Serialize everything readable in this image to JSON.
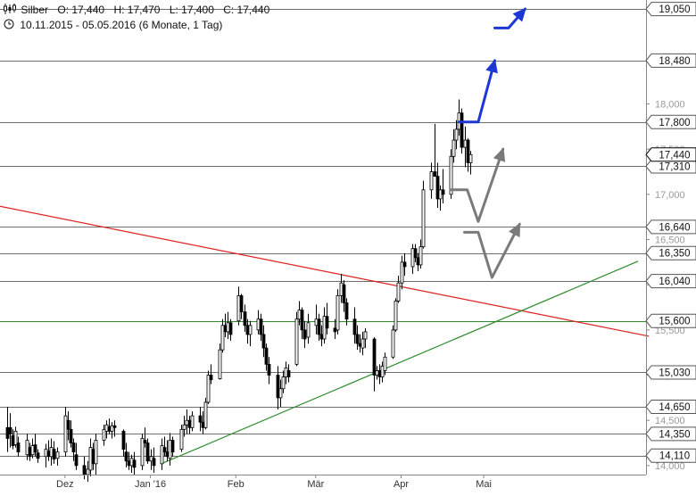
{
  "header": {
    "symbol": "Silber",
    "open": "O: 17,440",
    "high": "H: 17,470",
    "low": "L: 17,400",
    "close": "C: 17,440",
    "period": "10.11.2015 - 05.05.2016 (6 Monate, 1 Tag)"
  },
  "chart_data": {
    "type": "candlestick",
    "ylim": [
      13.9,
      19.15
    ],
    "x_axis": {
      "labels": [
        {
          "label": "Dez",
          "day": 21
        },
        {
          "label": "Jan '16",
          "day": 52
        },
        {
          "label": "Feb",
          "day": 83
        },
        {
          "label": "Mär",
          "day": 112
        },
        {
          "label": "Apr",
          "day": 143
        },
        {
          "label": "Mai",
          "day": 173
        }
      ],
      "range_days": [
        0,
        183
      ]
    },
    "y_ticks": [
      "14,000",
      "14,500",
      "15,000",
      "15,500",
      "16,000",
      "16,500",
      "17,000",
      "17,500",
      "18,000"
    ],
    "levels": [
      {
        "value": 19.05,
        "label": "19,050"
      },
      {
        "value": 18.48,
        "label": "18,480"
      },
      {
        "value": 17.8,
        "label": "17,800"
      },
      {
        "value": 17.31,
        "label": "17,310"
      },
      {
        "value": 16.64,
        "label": "16,640"
      },
      {
        "value": 16.35,
        "label": "16,350"
      },
      {
        "value": 16.04,
        "label": "16,040"
      },
      {
        "value": 15.6,
        "label": "15,600"
      },
      {
        "value": 15.03,
        "label": "15,030"
      },
      {
        "value": 14.65,
        "label": "14,650"
      },
      {
        "value": 14.35,
        "label": "14,350"
      },
      {
        "value": 14.11,
        "label": "14,110"
      }
    ],
    "support_level": {
      "value": 15.6,
      "color": "#2e8b2e"
    },
    "current_price": {
      "value": 17.44,
      "label": "17,440"
    },
    "trendlines": [
      {
        "name": "resistance",
        "color": "#e02020",
        "points": [
          [
            -3,
            16.87
          ],
          [
            233,
            15.43
          ]
        ]
      },
      {
        "name": "support",
        "color": "#2e8b2e",
        "points": [
          [
            56,
            14.02
          ],
          [
            229,
            16.26
          ]
        ]
      }
    ],
    "scenario_arrows": [
      {
        "color": "#1c37d6",
        "points": [
          [
            164,
            17.8
          ],
          [
            171,
            17.8
          ],
          [
            177,
            18.48
          ]
        ]
      },
      {
        "color": "#1c37d6",
        "points": [
          [
            177,
            18.84
          ],
          [
            182,
            18.84
          ],
          [
            188,
            19.05
          ]
        ]
      },
      {
        "color": "#7a7a7a",
        "points": [
          [
            161,
            17.05
          ],
          [
            167,
            17.05
          ],
          [
            171,
            16.7
          ],
          [
            180,
            17.5
          ]
        ]
      },
      {
        "color": "#7a7a7a",
        "points": [
          [
            166,
            16.58
          ],
          [
            171,
            16.58
          ],
          [
            176,
            16.08
          ],
          [
            186,
            16.67
          ]
        ]
      }
    ],
    "candles": [
      [
        0,
        14.65,
        14.15,
        14.42,
        14.3
      ],
      [
        1,
        14.58,
        14.2,
        14.42,
        14.35
      ],
      [
        2,
        14.4,
        14.18,
        14.33,
        14.22
      ],
      [
        3,
        14.43,
        14.2,
        14.23,
        14.38
      ],
      [
        4,
        14.32,
        14.1,
        14.25,
        14.15
      ],
      [
        7,
        14.35,
        14.06,
        14.12,
        14.28
      ],
      [
        8,
        14.25,
        14.05,
        14.2,
        14.1
      ],
      [
        9,
        14.3,
        14.08,
        14.12,
        14.22
      ],
      [
        10,
        14.35,
        14.1,
        14.23,
        14.15
      ],
      [
        11,
        14.18,
        14.03,
        14.14,
        14.08
      ],
      [
        14,
        14.24,
        13.98,
        14.1,
        14.18
      ],
      [
        15,
        14.28,
        14.05,
        14.16,
        14.1
      ],
      [
        16,
        14.3,
        14.0,
        14.1,
        14.2
      ],
      [
        17,
        14.27,
        14.02,
        14.18,
        14.07
      ],
      [
        18,
        14.2,
        14.0,
        14.08,
        14.15
      ],
      [
        21,
        14.65,
        14.1,
        14.15,
        14.55
      ],
      [
        22,
        14.6,
        14.28,
        14.5,
        14.4
      ],
      [
        23,
        14.5,
        14.2,
        14.4,
        14.25
      ],
      [
        24,
        14.3,
        14.05,
        14.25,
        14.15
      ],
      [
        25,
        14.25,
        13.95,
        14.12,
        14.0
      ],
      [
        28,
        14.1,
        13.85,
        14.0,
        13.9
      ],
      [
        29,
        14.05,
        13.82,
        13.9,
        13.96
      ],
      [
        30,
        14.3,
        13.88,
        13.95,
        14.2
      ],
      [
        31,
        14.25,
        13.95,
        14.18,
        14.02
      ],
      [
        32,
        14.35,
        13.9,
        14.02,
        14.28
      ],
      [
        35,
        14.45,
        14.22,
        14.28,
        14.4
      ],
      [
        36,
        14.5,
        14.3,
        14.38,
        14.45
      ],
      [
        37,
        14.52,
        14.35,
        14.43,
        14.38
      ],
      [
        38,
        14.48,
        14.3,
        14.38,
        14.44
      ],
      [
        39,
        14.5,
        14.32,
        14.44,
        14.42
      ],
      [
        42,
        14.4,
        14.1,
        14.38,
        14.18
      ],
      [
        43,
        14.25,
        13.98,
        14.15,
        14.05
      ],
      [
        44,
        14.15,
        13.95,
        14.05,
        14.0
      ],
      [
        45,
        14.12,
        13.92,
        14.0,
        14.08
      ],
      [
        46,
        14.15,
        13.9,
        14.06,
        13.98
      ],
      [
        49,
        14.35,
        13.95,
        14.0,
        14.3
      ],
      [
        50,
        14.42,
        14.2,
        14.28,
        14.25
      ],
      [
        51,
        14.3,
        14.02,
        14.25,
        14.05
      ],
      [
        52,
        14.18,
        13.95,
        14.05,
        14.1
      ],
      [
        53,
        14.2,
        13.92,
        14.08,
        14.0
      ],
      [
        56,
        14.3,
        13.95,
        14.02,
        14.22
      ],
      [
        57,
        14.32,
        14.1,
        14.2,
        14.15
      ],
      [
        58,
        14.28,
        14.05,
        14.15,
        14.1
      ],
      [
        59,
        14.36,
        14.0,
        14.08,
        14.28
      ],
      [
        60,
        14.32,
        14.1,
        14.28,
        14.15
      ],
      [
        63,
        14.45,
        14.15,
        14.18,
        14.4
      ],
      [
        64,
        14.55,
        14.32,
        14.4,
        14.45
      ],
      [
        65,
        14.62,
        14.35,
        14.45,
        14.5
      ],
      [
        66,
        14.55,
        14.35,
        14.5,
        14.42
      ],
      [
        67,
        14.6,
        14.38,
        14.42,
        14.55
      ],
      [
        70,
        14.65,
        14.38,
        14.55,
        14.48
      ],
      [
        71,
        14.6,
        14.35,
        14.48,
        14.42
      ],
      [
        72,
        14.75,
        14.4,
        14.42,
        14.7
      ],
      [
        73,
        15.05,
        14.68,
        14.7,
        15.0
      ],
      [
        74,
        15.12,
        14.9,
        15.0,
        14.95
      ],
      [
        77,
        15.35,
        14.95,
        14.96,
        15.28
      ],
      [
        78,
        15.62,
        15.25,
        15.28,
        15.55
      ],
      [
        79,
        15.68,
        15.42,
        15.55,
        15.48
      ],
      [
        80,
        15.7,
        15.4,
        15.48,
        15.58
      ],
      [
        81,
        15.62,
        15.38,
        15.58,
        15.45
      ],
      [
        84,
        15.98,
        15.55,
        15.6,
        15.88
      ],
      [
        85,
        15.9,
        15.62,
        15.88,
        15.7
      ],
      [
        86,
        15.78,
        15.48,
        15.7,
        15.55
      ],
      [
        87,
        15.62,
        15.35,
        15.55,
        15.45
      ],
      [
        88,
        15.6,
        15.32,
        15.45,
        15.55
      ],
      [
        91,
        15.72,
        15.45,
        15.5,
        15.62
      ],
      [
        92,
        15.68,
        15.38,
        15.62,
        15.45
      ],
      [
        93,
        15.55,
        15.2,
        15.45,
        15.3
      ],
      [
        94,
        15.35,
        15.05,
        15.3,
        15.12
      ],
      [
        95,
        15.2,
        14.9,
        15.12,
        15.0
      ],
      [
        98,
        15.1,
        14.62,
        15.0,
        14.75
      ],
      [
        99,
        14.95,
        14.65,
        14.75,
        14.85
      ],
      [
        100,
        15.05,
        14.8,
        14.85,
        14.98
      ],
      [
        101,
        15.15,
        14.9,
        14.98,
        15.08
      ],
      [
        102,
        15.12,
        14.92,
        15.05,
        14.98
      ],
      [
        105,
        15.7,
        15.1,
        15.12,
        15.62
      ],
      [
        106,
        15.82,
        15.55,
        15.62,
        15.72
      ],
      [
        107,
        15.75,
        15.4,
        15.72,
        15.5
      ],
      [
        108,
        15.6,
        15.3,
        15.5,
        15.4
      ],
      [
        109,
        15.68,
        15.35,
        15.42,
        15.58
      ],
      [
        112,
        15.78,
        15.45,
        15.55,
        15.62
      ],
      [
        113,
        15.68,
        15.38,
        15.62,
        15.45
      ],
      [
        114,
        15.55,
        15.32,
        15.45,
        15.4
      ],
      [
        115,
        15.75,
        15.35,
        15.4,
        15.65
      ],
      [
        116,
        15.8,
        15.45,
        15.65,
        15.52
      ],
      [
        119,
        15.62,
        15.4,
        15.52,
        15.48
      ],
      [
        120,
        15.95,
        15.45,
        15.5,
        15.88
      ],
      [
        121,
        16.12,
        15.8,
        15.88,
        16.02
      ],
      [
        122,
        16.05,
        15.7,
        16.0,
        15.8
      ],
      [
        123,
        15.85,
        15.55,
        15.8,
        15.62
      ],
      [
        126,
        15.75,
        15.35,
        15.62,
        15.45
      ],
      [
        127,
        15.55,
        15.28,
        15.45,
        15.35
      ],
      [
        128,
        15.45,
        15.25,
        15.35,
        15.32
      ],
      [
        129,
        15.48,
        15.22,
        15.3,
        15.4
      ],
      [
        130,
        15.52,
        15.3,
        15.4,
        15.48
      ],
      [
        133,
        15.42,
        14.82,
        15.4,
        15.0
      ],
      [
        134,
        15.1,
        14.95,
        15.0,
        15.05
      ],
      [
        135,
        15.12,
        14.9,
        15.05,
        14.98
      ],
      [
        136,
        15.15,
        14.92,
        14.98,
        15.1
      ],
      [
        137,
        15.25,
        15.0,
        15.05,
        15.2
      ],
      [
        140,
        15.55,
        15.18,
        15.2,
        15.5
      ],
      [
        141,
        15.85,
        15.48,
        15.5,
        15.82
      ],
      [
        142,
        16.1,
        15.8,
        15.82,
        16.02
      ],
      [
        143,
        16.32,
        15.95,
        16.02,
        16.25
      ],
      [
        144,
        16.35,
        16.1,
        16.25,
        16.2
      ],
      [
        147,
        16.45,
        16.12,
        16.2,
        16.4
      ],
      [
        148,
        16.45,
        16.25,
        16.4,
        16.3
      ],
      [
        149,
        16.35,
        16.15,
        16.3,
        16.22
      ],
      [
        150,
        16.5,
        16.18,
        16.22,
        16.42
      ],
      [
        151,
        17.15,
        16.4,
        16.42,
        17.05
      ],
      [
        154,
        17.35,
        16.95,
        17.05,
        17.25
      ],
      [
        155,
        17.78,
        17.2,
        17.25,
        17.2
      ],
      [
        156,
        17.35,
        16.85,
        17.2,
        16.95
      ],
      [
        157,
        17.1,
        16.82,
        16.95,
        17.05
      ],
      [
        158,
        17.28,
        16.9,
        17.05,
        17.0
      ],
      [
        161,
        17.5,
        16.95,
        17.0,
        17.42
      ],
      [
        162,
        17.72,
        17.35,
        17.42,
        17.6
      ],
      [
        163,
        17.82,
        17.5,
        17.6,
        17.72
      ],
      [
        164,
        18.05,
        17.65,
        17.72,
        17.9
      ],
      [
        165,
        17.95,
        17.45,
        17.9,
        17.52
      ],
      [
        166,
        17.75,
        17.3,
        17.52,
        17.6
      ],
      [
        167,
        17.62,
        17.25,
        17.6,
        17.35
      ],
      [
        168,
        17.48,
        17.22,
        17.35,
        17.44
      ]
    ]
  }
}
